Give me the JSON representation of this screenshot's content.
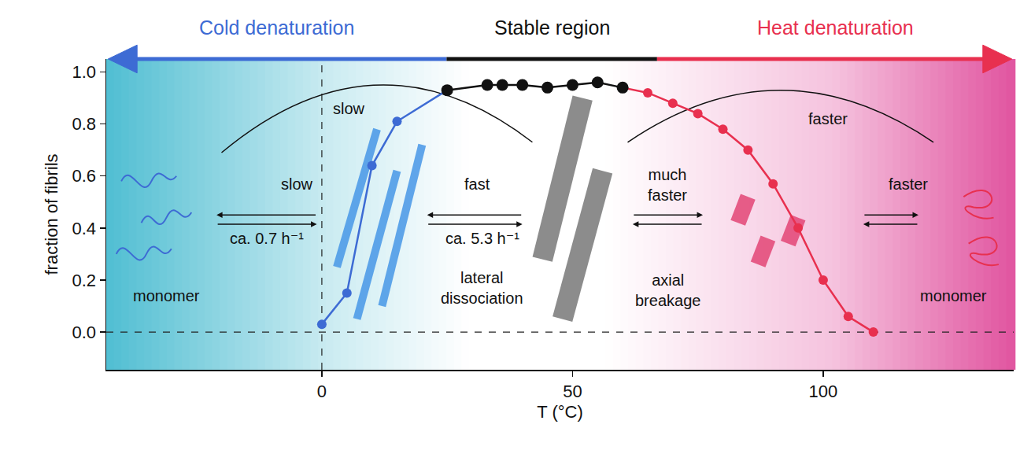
{
  "chart_data": {
    "type": "line",
    "x_label": "T (°C)",
    "y_label": "fraction of fibrils",
    "xlim": [
      -43,
      138
    ],
    "ylim": [
      -0.145,
      1.05
    ],
    "xticks": [
      0,
      50,
      100
    ],
    "yticks": [
      {
        "value": 0,
        "label": "0.0"
      },
      {
        "value": 0.2,
        "label": "0.2"
      },
      {
        "value": 0.4,
        "label": "0.4"
      },
      {
        "value": 0.6,
        "label": "0.6"
      },
      {
        "value": 0.8,
        "label": "0.8"
      },
      {
        "value": 1.0,
        "label": "1.0"
      }
    ],
    "grid": false,
    "series": [
      {
        "name": "Cold denaturation",
        "color": "#3d6bd4",
        "marker": "circle",
        "line_style": "solid",
        "x": [
          0,
          5,
          10,
          15,
          25
        ],
        "values": [
          0.03,
          0.15,
          0.64,
          0.81,
          0.93
        ]
      },
      {
        "name": "Stable region",
        "color": "#111111",
        "marker": "circle",
        "line_style": "solid",
        "x": [
          25,
          33,
          36,
          40,
          45,
          50,
          55,
          60
        ],
        "values": [
          0.93,
          0.95,
          0.95,
          0.95,
          0.94,
          0.95,
          0.96,
          0.94
        ]
      },
      {
        "name": "Heat denaturation",
        "color": "#e8304f",
        "marker": "circle",
        "line_style": "solid",
        "x": [
          60,
          65,
          70,
          75,
          80,
          85,
          90,
          95,
          100,
          105,
          110
        ],
        "values": [
          0.94,
          0.92,
          0.88,
          0.84,
          0.78,
          0.7,
          0.57,
          0.4,
          0.2,
          0.06,
          0.0
        ]
      }
    ],
    "annotations": [
      "slow",
      "slow",
      "ca. 0.7 h⁻¹",
      "monomer",
      "fast",
      "ca. 5.3 h⁻¹",
      "lateral dissociation",
      "much faster",
      "axial breakage",
      "faster",
      "faster",
      "monomer"
    ]
  }
}
